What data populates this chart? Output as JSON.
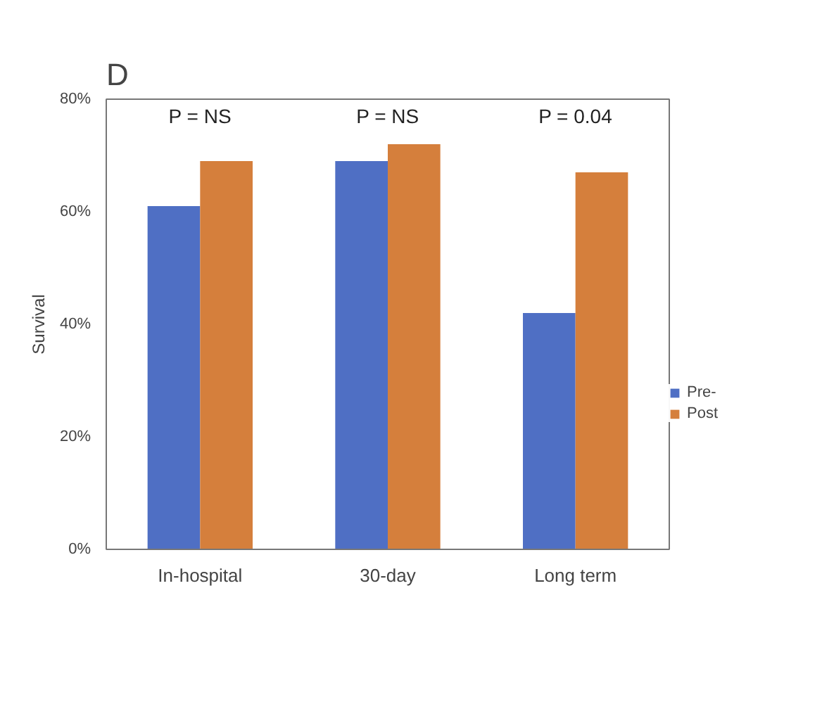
{
  "chart_data": {
    "type": "bar",
    "title": "D",
    "ylabel": "Survival",
    "categories": [
      "In-hospital",
      "30-day",
      "Long term"
    ],
    "series": [
      {
        "name": "Pre-",
        "color": "#4f6fc4",
        "values": [
          61,
          69,
          42
        ]
      },
      {
        "name": "Post",
        "color": "#d57f3c",
        "values": [
          69,
          72,
          67
        ]
      }
    ],
    "ylim": [
      0,
      80
    ],
    "yticks": [
      {
        "value": 0,
        "label": "0%"
      },
      {
        "value": 20,
        "label": "20%"
      },
      {
        "value": 40,
        "label": "40%"
      },
      {
        "value": 60,
        "label": "60%"
      },
      {
        "value": 80,
        "label": "80%"
      }
    ],
    "grid": false,
    "legend": "right",
    "annotations": [
      "P = NS",
      "P = NS",
      "P = 0.04"
    ]
  }
}
